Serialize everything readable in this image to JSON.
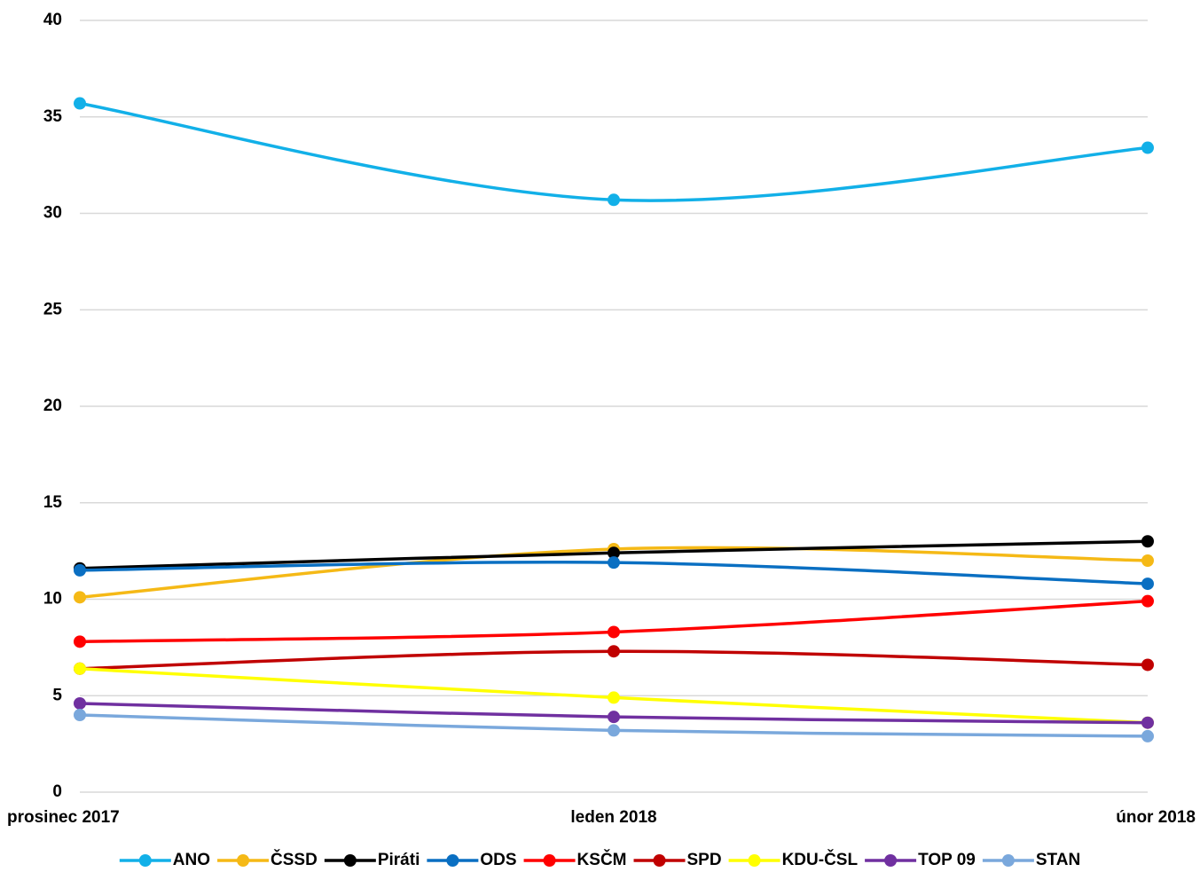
{
  "chart_data": {
    "type": "line",
    "categories": [
      "prosinec 2017",
      "leden 2018",
      "únor 2018"
    ],
    "series": [
      {
        "name": "ANO",
        "color": "#12b0e8",
        "values": [
          35.7,
          30.7,
          33.4
        ]
      },
      {
        "name": "ČSSD",
        "color": "#f5b916",
        "values": [
          10.1,
          12.6,
          12.0
        ]
      },
      {
        "name": "Piráti",
        "color": "#000000",
        "values": [
          11.6,
          12.4,
          13.0
        ]
      },
      {
        "name": "ODS",
        "color": "#0a6fc2",
        "values": [
          11.5,
          11.9,
          10.8
        ]
      },
      {
        "name": "KSČM",
        "color": "#ff0000",
        "values": [
          7.8,
          8.3,
          9.9
        ]
      },
      {
        "name": "SPD",
        "color": "#c00000",
        "values": [
          6.4,
          7.3,
          6.6
        ]
      },
      {
        "name": "KDU-ČSL",
        "color": "#ffff00",
        "values": [
          6.4,
          4.9,
          3.6
        ]
      },
      {
        "name": "TOP 09",
        "color": "#7030a0",
        "values": [
          4.6,
          3.9,
          3.6
        ]
      },
      {
        "name": "STAN",
        "color": "#7aa8dc",
        "values": [
          4.0,
          3.2,
          2.9
        ]
      }
    ],
    "ylim": [
      0,
      40
    ],
    "yticks": [
      0,
      5,
      10,
      15,
      20,
      25,
      30,
      35,
      40
    ],
    "grid": true,
    "smooth": true,
    "legend": "bottom"
  }
}
